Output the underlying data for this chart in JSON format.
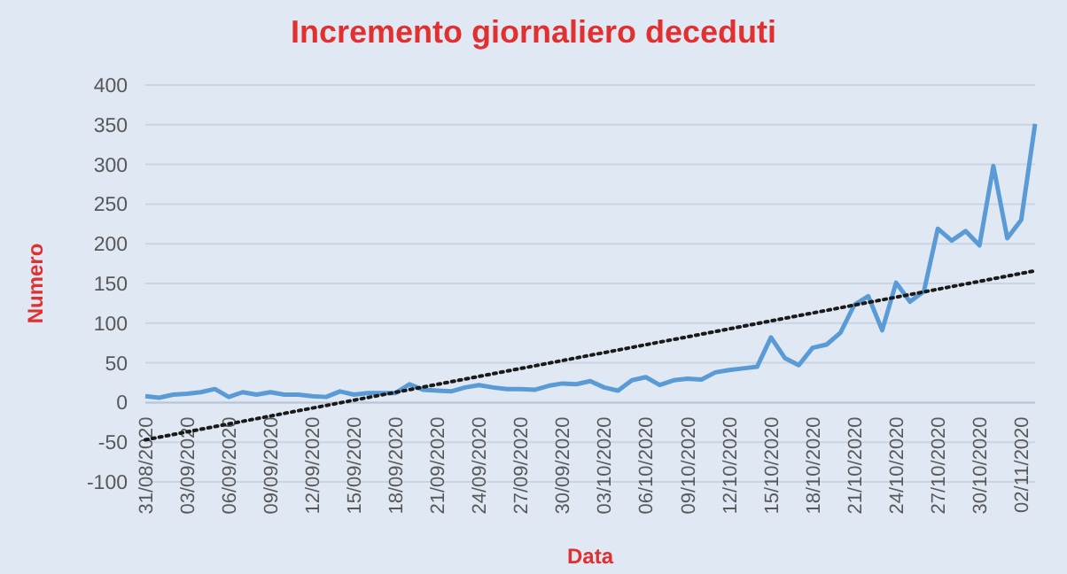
{
  "chart_data": {
    "type": "line",
    "title": "Incremento giornaliero deceduti",
    "xlabel": "Data",
    "ylabel": "Numero",
    "x": [
      "2020-08-31",
      "2020-09-01",
      "2020-09-02",
      "2020-09-03",
      "2020-09-04",
      "2020-09-05",
      "2020-09-06",
      "2020-09-07",
      "2020-09-08",
      "2020-09-09",
      "2020-09-10",
      "2020-09-11",
      "2020-09-12",
      "2020-09-13",
      "2020-09-14",
      "2020-09-15",
      "2020-09-16",
      "2020-09-17",
      "2020-09-18",
      "2020-09-19",
      "2020-09-20",
      "2020-09-21",
      "2020-09-22",
      "2020-09-23",
      "2020-09-24",
      "2020-09-25",
      "2020-09-26",
      "2020-09-27",
      "2020-09-28",
      "2020-09-29",
      "2020-09-30",
      "2020-10-01",
      "2020-10-02",
      "2020-10-03",
      "2020-10-04",
      "2020-10-05",
      "2020-10-06",
      "2020-10-07",
      "2020-10-08",
      "2020-10-09",
      "2020-10-10",
      "2020-10-11",
      "2020-10-12",
      "2020-10-13",
      "2020-10-14",
      "2020-10-15",
      "2020-10-16",
      "2020-10-17",
      "2020-10-18",
      "2020-10-19",
      "2020-10-20",
      "2020-10-21",
      "2020-10-22",
      "2020-10-23",
      "2020-10-24",
      "2020-10-25",
      "2020-10-26",
      "2020-10-27",
      "2020-10-28",
      "2020-10-29",
      "2020-10-30",
      "2020-10-31",
      "2020-11-01",
      "2020-11-02",
      "2020-11-03"
    ],
    "series": [
      {
        "color": "#5b9bd5",
        "values": [
          8,
          6,
          10,
          11,
          13,
          17,
          7,
          13,
          10,
          13,
          10,
          10,
          8,
          7,
          14,
          10,
          12,
          12,
          12,
          23,
          16,
          15,
          14,
          19,
          22,
          19,
          17,
          17,
          16,
          21,
          24,
          23,
          27,
          19,
          15,
          28,
          32,
          22,
          28,
          30,
          29,
          38,
          41,
          43,
          45,
          82,
          56,
          47,
          69,
          73,
          88,
          123,
          134,
          91,
          151,
          127,
          140,
          219,
          204,
          216,
          198,
          298,
          207,
          230,
          351
        ]
      },
      {
        "color": "#1a1a1a",
        "line_style": "dotted",
        "x": [
          "2020-08-31",
          "2020-11-03"
        ],
        "values": [
          -47,
          166
        ]
      }
    ],
    "xlim": [
      "2020-08-31",
      "2020-11-03"
    ],
    "xticks": [
      {
        "value": "2020-08-31",
        "label": "31/08/2020"
      },
      {
        "value": "2020-09-03",
        "label": "03/09/2020"
      },
      {
        "value": "2020-09-06",
        "label": "06/09/2020"
      },
      {
        "value": "2020-09-09",
        "label": "09/09/2020"
      },
      {
        "value": "2020-09-12",
        "label": "12/09/2020"
      },
      {
        "value": "2020-09-15",
        "label": "15/09/2020"
      },
      {
        "value": "2020-09-18",
        "label": "18/09/2020"
      },
      {
        "value": "2020-09-21",
        "label": "21/09/2020"
      },
      {
        "value": "2020-09-24",
        "label": "24/09/2020"
      },
      {
        "value": "2020-09-27",
        "label": "27/09/2020"
      },
      {
        "value": "2020-09-30",
        "label": "30/09/2020"
      },
      {
        "value": "2020-10-03",
        "label": "03/10/2020"
      },
      {
        "value": "2020-10-06",
        "label": "06/10/2020"
      },
      {
        "value": "2020-10-09",
        "label": "09/10/2020"
      },
      {
        "value": "2020-10-12",
        "label": "12/10/2020"
      },
      {
        "value": "2020-10-15",
        "label": "15/10/2020"
      },
      {
        "value": "2020-10-18",
        "label": "18/10/2020"
      },
      {
        "value": "2020-10-21",
        "label": "21/10/2020"
      },
      {
        "value": "2020-10-24",
        "label": "24/10/2020"
      },
      {
        "value": "2020-10-27",
        "label": "27/10/2020"
      },
      {
        "value": "2020-10-30",
        "label": "30/10/2020"
      },
      {
        "value": "2020-11-02",
        "label": "02/11/2020"
      }
    ],
    "ylim": [
      -100,
      400
    ],
    "yticks": [
      -100,
      -50,
      0,
      50,
      100,
      150,
      200,
      250,
      300,
      350,
      400
    ],
    "grid": "y",
    "line_style": "solid",
    "marker": "none"
  }
}
